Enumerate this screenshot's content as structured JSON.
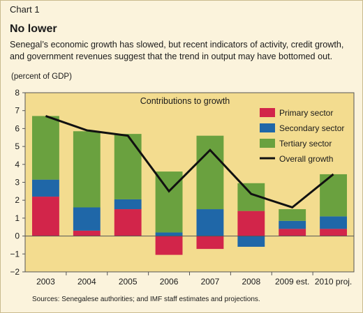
{
  "header": {
    "chart_label": "Chart 1",
    "headline": "No lower",
    "subtitle": "Senegal’s economic growth has slowed, but recent indicators of activity, credit growth, and government revenues suggest that the trend in output may have bottomed out.",
    "unit": "(percent of GDP)"
  },
  "source": "Sources: Senegalese authorities; and IMF staff estimates and projections.",
  "colors": {
    "primary": "#d2254a",
    "secondary": "#1f67a8",
    "tertiary": "#6aa13f",
    "overall": "#111111",
    "plot_bg": "#f3dc8f",
    "page_bg": "#fbf3dc"
  },
  "chart_data": {
    "type": "bar",
    "stacked": true,
    "title": "Contributions to growth",
    "ylabel": "(percent of GDP)",
    "ylim": [
      -2,
      8
    ],
    "yticks": [
      -2,
      -1,
      0,
      1,
      2,
      3,
      4,
      5,
      6,
      7,
      8
    ],
    "grid": false,
    "legend_position": "top-right",
    "categories": [
      "2003",
      "2004",
      "2005",
      "2006",
      "2007",
      "2008",
      "2009 est.",
      "2010 proj."
    ],
    "series": [
      {
        "name": "Primary sector",
        "values": [
          2.2,
          0.3,
          1.5,
          -1.05,
          -0.72,
          1.4,
          0.4,
          0.4
        ]
      },
      {
        "name": "Secondary sector",
        "values": [
          0.95,
          1.3,
          0.55,
          0.2,
          1.5,
          -0.6,
          0.45,
          0.7
        ]
      },
      {
        "name": "Tertiary sector",
        "values": [
          3.55,
          4.25,
          3.65,
          3.4,
          4.1,
          1.55,
          0.65,
          2.35
        ]
      }
    ],
    "line": {
      "name": "Overall growth",
      "values": [
        6.7,
        5.9,
        5.6,
        2.5,
        4.8,
        2.35,
        1.6,
        3.45
      ]
    }
  }
}
